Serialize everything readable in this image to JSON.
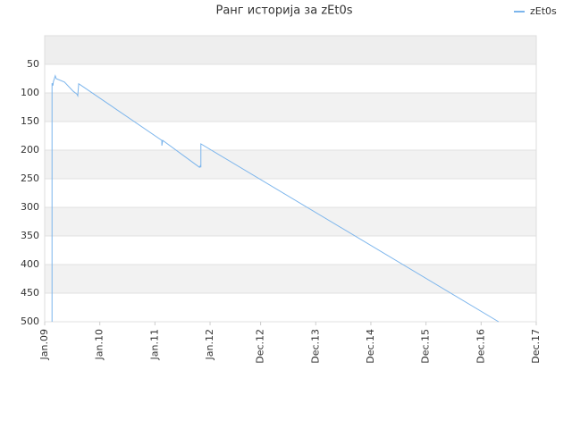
{
  "chart_data": {
    "type": "line",
    "title": "Ранг историја за zEt0s",
    "x": [
      1.6,
      1.6,
      1.8,
      1.9,
      2.3,
      2.5,
      4.3,
      6.2,
      7.0,
      7.2,
      7.4,
      7.8,
      25.5,
      25.5,
      25.7,
      33.7,
      33.9,
      34.0,
      34.0,
      98.8
    ],
    "series": [
      {
        "name": "zEt0s",
        "color": "#7cb5ec",
        "values": [
          500,
          83,
          87,
          80,
          70,
          75,
          81,
          97,
          102,
          105,
          84,
          86,
          183,
          192,
          183,
          230,
          227,
          230,
          189,
          500
        ]
      }
    ],
    "xlim": [
      0,
      107
    ],
    "xticks": [
      {
        "value": 0,
        "label": "Jan.09"
      },
      {
        "value": 12,
        "label": "Jan.10"
      },
      {
        "value": 24,
        "label": "Jan.11"
      },
      {
        "value": 36,
        "label": "Jan.12"
      },
      {
        "value": 47,
        "label": "Dec.12"
      },
      {
        "value": 59,
        "label": "Dec.13"
      },
      {
        "value": 71,
        "label": "Dec.14"
      },
      {
        "value": 83,
        "label": "Dec.15"
      },
      {
        "value": 95,
        "label": "Dec.16"
      },
      {
        "value": 107,
        "label": "Dec.17"
      }
    ],
    "ylim": [
      0,
      500
    ],
    "y_reversed": true,
    "yticks": [
      50,
      100,
      150,
      200,
      250,
      300,
      350,
      400,
      450,
      500
    ],
    "grid": true,
    "legend": "top-right"
  }
}
